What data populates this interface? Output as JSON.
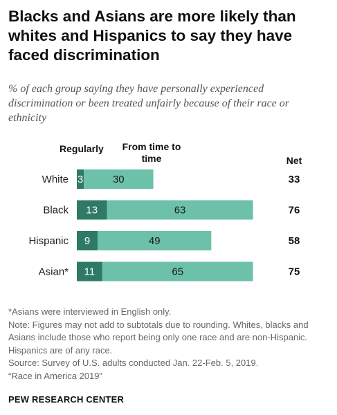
{
  "title": "Blacks and Asians are more likely than whites and Hispanics to say they have faced discrimination",
  "subtitle": "% of each group saying they have personally experienced discrimination or been treated unfairly because of their race or ethnicity",
  "chart_data": {
    "type": "bar",
    "orientation": "horizontal",
    "stacked": true,
    "categories": [
      "White",
      "Black",
      "Hispanic",
      "Asian*"
    ],
    "series": [
      {
        "name": "Regularly",
        "values": [
          3,
          13,
          9,
          11
        ],
        "color": "#2f7a66"
      },
      {
        "name": "From time to time",
        "values": [
          30,
          63,
          49,
          65
        ],
        "color": "#6cc1a8"
      }
    ],
    "net_label": "Net",
    "net": [
      33,
      76,
      58,
      75
    ],
    "xlim": [
      0,
      80
    ],
    "grid": false
  },
  "notes": [
    "*Asians were interviewed in English only.",
    "Note: Figures may not add to subtotals due to rounding. Whites, blacks and Asians include those who report being only one race and are non-Hispanic. Hispanics are of any race.",
    "Source: Survey of U.S. adults conducted Jan. 22-Feb. 5, 2019.",
    "“Race in America 2019”"
  ],
  "brand": "PEW RESEARCH CENTER"
}
